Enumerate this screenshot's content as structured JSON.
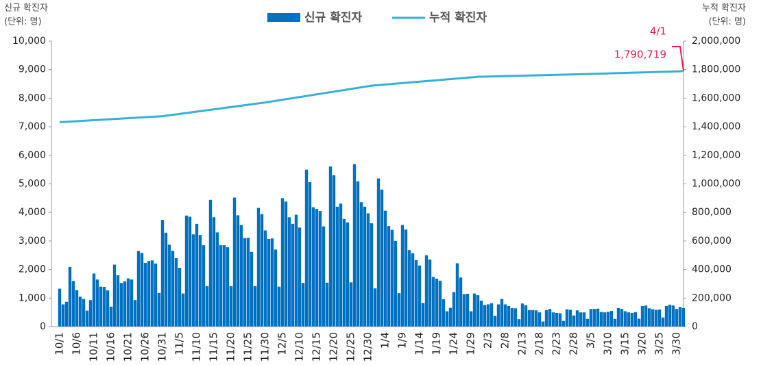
{
  "chart_data": {
    "type": "bar-line",
    "y_label": [
      "신규 확진자",
      "(단위: 명)"
    ],
    "y2_label": [
      "누적 확진자",
      "(단위: 명)"
    ],
    "categories": [
      "10/1",
      null,
      null,
      null,
      null,
      "10/6",
      null,
      null,
      null,
      null,
      "10/11",
      null,
      null,
      null,
      null,
      "10/16",
      null,
      null,
      null,
      null,
      "10/21",
      null,
      null,
      null,
      null,
      "10/26",
      null,
      null,
      null,
      null,
      "10/31",
      null,
      null,
      null,
      null,
      "11/5",
      null,
      null,
      null,
      null,
      "11/10",
      null,
      null,
      null,
      null,
      "11/15",
      null,
      null,
      null,
      null,
      "11/20",
      null,
      null,
      null,
      null,
      "11/25",
      null,
      null,
      null,
      null,
      "11/30",
      null,
      null,
      null,
      null,
      "12/5",
      null,
      null,
      null,
      null,
      "12/10",
      null,
      null,
      null,
      null,
      "12/15",
      null,
      null,
      null,
      null,
      "12/20",
      null,
      null,
      null,
      null,
      "12/25",
      null,
      null,
      null,
      null,
      "12/30",
      null,
      null,
      null,
      null,
      "1/4",
      null,
      null,
      null,
      null,
      "1/9",
      null,
      null,
      null,
      null,
      "1/14",
      null,
      null,
      null,
      null,
      "1/19",
      null,
      null,
      null,
      null,
      "1/24",
      null,
      null,
      null,
      null,
      "1/29",
      null,
      null,
      null,
      null,
      "2/3",
      null,
      null,
      null,
      null,
      "2/8",
      null,
      null,
      null,
      null,
      "2/13",
      null,
      null,
      null,
      null,
      "2/18",
      null,
      null,
      null,
      null,
      "2/23",
      null,
      null,
      null,
      null,
      "2/28",
      null,
      null,
      null,
      null,
      "3/5",
      null,
      null,
      null,
      null,
      "3/10",
      null,
      null,
      null,
      null,
      "3/15",
      null,
      null,
      null,
      null,
      "3/20",
      null,
      null,
      null,
      null,
      "3/25",
      null,
      null,
      null,
      null,
      "3/30",
      null,
      null
    ],
    "series": [
      {
        "name": "신규 확진자",
        "color": "#0070c0",
        "type": "bar",
        "values": [
          1330,
          780,
          870,
          2090,
          1600,
          1280,
          1050,
          970,
          560,
          930,
          1860,
          1650,
          1400,
          1390,
          1270,
          700,
          2170,
          1800,
          1530,
          1590,
          1690,
          1650,
          930,
          2650,
          2580,
          2230,
          2300,
          2320,
          2210,
          1180,
          3740,
          3290,
          2870,
          2650,
          2400,
          2060,
          1160,
          3890,
          3850,
          3230,
          3600,
          3210,
          2850,
          1420,
          4440,
          3830,
          3300,
          2850,
          2850,
          2780,
          1420,
          4520,
          3900,
          3560,
          3100,
          3110,
          2620,
          1420,
          4160,
          3940,
          3370,
          3070,
          3090,
          2700,
          1400,
          4500,
          4380,
          3830,
          3600,
          3920,
          3470,
          1530,
          5500,
          5060,
          4180,
          4120,
          4050,
          3510,
          1540,
          5610,
          5300,
          4200,
          4310,
          3770,
          3650,
          1550,
          5690,
          5090,
          4360,
          4200,
          3970,
          3620,
          1340,
          5190,
          4800,
          4060,
          3520,
          3390,
          3000,
          1170,
          3560,
          3400,
          2680,
          2570,
          2330,
          2140,
          830,
          2500,
          2350,
          1740,
          1680,
          1610,
          960,
          540,
          660,
          1210,
          2220,
          1720,
          1140,
          1150,
          540,
          1160,
          1100,
          910,
          760,
          780,
          820,
          380,
          780,
          970,
          780,
          720,
          650,
          640,
          260,
          810,
          750,
          580,
          580,
          570,
          500,
          180,
          580,
          620,
          500,
          480,
          470,
          200,
          610,
          590,
          390,
          570,
          500,
          500,
          270,
          620,
          620,
          630,
          510,
          500,
          520,
          550,
          270,
          650,
          620,
          540,
          500,
          480,
          510,
          280,
          720,
          740,
          640,
          610,
          590,
          600,
          320,
          720,
          770,
          740,
          620,
          690,
          650
        ]
      },
      {
        "name": "누적 확진자",
        "color": "#35b0d8",
        "type": "line",
        "axis": "y2",
        "values": [
          1432000,
          1433400,
          1434800,
          1436200,
          1437600,
          1439000,
          1440400,
          1441800,
          1443200,
          1444600,
          1446000,
          1447400,
          1448800,
          1450200,
          1451600,
          1453000,
          1454400,
          1455800,
          1457200,
          1458600,
          1460000,
          1461400,
          1462800,
          1464200,
          1465600,
          1467000,
          1468400,
          1469800,
          1471200,
          1472600,
          1474000,
          1477200,
          1480400,
          1483600,
          1486800,
          1490000,
          1493200,
          1496400,
          1499600,
          1502800,
          1506000,
          1509200,
          1512400,
          1515600,
          1518800,
          1522000,
          1525200,
          1528400,
          1531600,
          1534800,
          1538000,
          1541200,
          1544400,
          1547600,
          1550800,
          1554000,
          1557200,
          1560400,
          1563600,
          1566800,
          1570000,
          1573800,
          1577600,
          1581400,
          1585200,
          1589000,
          1592800,
          1596600,
          1600400,
          1604200,
          1608000,
          1611800,
          1615600,
          1619400,
          1623200,
          1627000,
          1630800,
          1634600,
          1638400,
          1642200,
          1646000,
          1649800,
          1653600,
          1657400,
          1661200,
          1665000,
          1668800,
          1672600,
          1676400,
          1680200,
          1684000,
          1687800,
          1689800,
          1691800,
          1693800,
          1695800,
          1697800,
          1699800,
          1701800,
          1703800,
          1705800,
          1707800,
          1709800,
          1711800,
          1713800,
          1715800,
          1717800,
          1719800,
          1721800,
          1723800,
          1725800,
          1727800,
          1729800,
          1731800,
          1733800,
          1735800,
          1737800,
          1739800,
          1741800,
          1743800,
          1745800,
          1747800,
          1749800,
          1750400,
          1751000,
          1751600,
          1752200,
          1752800,
          1753400,
          1754000,
          1754600,
          1755200,
          1755800,
          1756400,
          1757000,
          1757600,
          1758200,
          1758800,
          1759400,
          1760000,
          1760600,
          1761200,
          1761800,
          1762400,
          1763000,
          1763600,
          1764200,
          1764800,
          1765400,
          1766000,
          1766600,
          1767300,
          1768000,
          1768700,
          1769400,
          1770100,
          1770800,
          1771500,
          1772200,
          1772900,
          1773600,
          1774300,
          1775000,
          1775700,
          1776400,
          1777100,
          1777800,
          1778500,
          1779200,
          1779900,
          1780600,
          1781300,
          1782000,
          1782700,
          1783400,
          1784100,
          1784800,
          1785500,
          1786200,
          1786900,
          1787600,
          1788300,
          1790719
        ]
      }
    ],
    "annotation": {
      "date": "4/1",
      "value_label": "1,790,719",
      "color": "#e0204a"
    },
    "ylim": [
      0,
      10000
    ],
    "yticks": [
      0,
      {
        "value": 1000,
        "label": "1,000"
      },
      {
        "value": 2000,
        "label": "2,000"
      },
      {
        "value": 3000,
        "label": "3,000"
      },
      {
        "value": 4000,
        "label": "4,000"
      },
      {
        "value": 5000,
        "label": "5,000"
      },
      {
        "value": 6000,
        "label": "6,000"
      },
      {
        "value": 7000,
        "label": "7,000"
      },
      {
        "value": 8000,
        "label": "8,000"
      },
      {
        "value": 9000,
        "label": "9,000"
      },
      {
        "value": 10000,
        "label": "10,000"
      }
    ],
    "y2lim": [
      0,
      2000000
    ],
    "y2ticks": [
      0,
      {
        "value": 200000,
        "label": "200,000"
      },
      {
        "value": 400000,
        "label": "400,000"
      },
      {
        "value": 600000,
        "label": "600,000"
      },
      {
        "value": 800000,
        "label": "800,000"
      },
      {
        "value": 1000000,
        "label": "1,000,000"
      },
      {
        "value": 1200000,
        "label": "1,200,000"
      },
      {
        "value": 1400000,
        "label": "1,400,000"
      },
      {
        "value": 1600000,
        "label": "1,600,000"
      },
      {
        "value": 1800000,
        "label": "1,800,000"
      },
      {
        "value": 2000000,
        "label": "2,000,000"
      }
    ]
  }
}
